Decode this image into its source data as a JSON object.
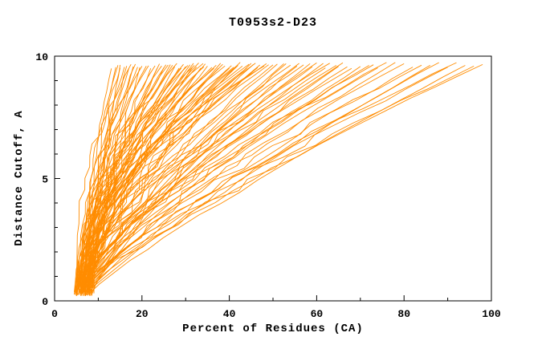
{
  "page": {
    "background": "#ffffff"
  },
  "chart_data": {
    "type": "line",
    "title": "T0953s2-D23",
    "xlabel": "Percent of Residues (CA)",
    "ylabel": "Distance Cutoff, A",
    "xlim": [
      0,
      100
    ],
    "ylim": [
      0,
      10
    ],
    "x_major_ticks": [
      0,
      20,
      40,
      60,
      80,
      100
    ],
    "x_minor_ticks": [
      10,
      30,
      50,
      70,
      90
    ],
    "y_major_ticks": [
      0,
      5,
      10
    ],
    "y_minor_ticks": [
      1,
      2,
      3,
      4,
      6,
      7,
      8,
      9
    ],
    "grid": false,
    "legend": "none",
    "line_color": "#ff8c00",
    "axis_color": "#000000",
    "curve_vertical_extent": [
      0.3,
      9.7
    ],
    "curve_format": [
      "percent_at_cutoff_bottom",
      "percent_at_cutoff_top",
      "shape_exponent"
    ],
    "curves": [
      [
        6,
        13,
        1.6
      ],
      [
        7,
        14,
        1.8
      ],
      [
        5.5,
        15,
        1.5
      ],
      [
        8,
        16,
        2.0
      ],
      [
        6.5,
        16.5,
        1.4
      ],
      [
        7.5,
        17,
        1.7
      ],
      [
        5,
        17.5,
        2.1
      ],
      [
        8.5,
        18,
        1.5
      ],
      [
        6,
        18.5,
        1.9
      ],
      [
        7,
        19,
        1.6
      ],
      [
        9,
        19.5,
        1.4
      ],
      [
        5.5,
        20,
        2.2
      ],
      [
        8,
        15,
        1.3
      ],
      [
        6.8,
        14.5,
        2.0
      ],
      [
        5,
        21,
        1.8
      ],
      [
        6,
        22,
        1.5
      ],
      [
        7,
        23,
        2.0
      ],
      [
        8,
        24,
        1.6
      ],
      [
        5.5,
        24.5,
        1.9
      ],
      [
        6.5,
        25,
        1.4
      ],
      [
        7.5,
        26,
        2.2
      ],
      [
        8.5,
        26.5,
        1.7
      ],
      [
        4.5,
        27,
        1.5
      ],
      [
        6,
        28,
        2.0
      ],
      [
        7,
        28.5,
        1.6
      ],
      [
        8,
        29,
        1.9
      ],
      [
        5,
        30,
        1.5
      ],
      [
        6.5,
        30.5,
        2.1
      ],
      [
        7.5,
        31,
        1.7
      ],
      [
        8.5,
        31.5,
        1.4
      ],
      [
        5.5,
        32,
        2.0
      ],
      [
        6,
        32.5,
        1.6
      ],
      [
        7,
        33,
        1.8
      ],
      [
        8,
        33.5,
        1.5
      ],
      [
        4.8,
        34,
        2.2
      ],
      [
        6.2,
        34.5,
        1.7
      ],
      [
        7.2,
        35,
        1.5
      ],
      [
        5.8,
        21.5,
        2.0
      ],
      [
        6.8,
        23.5,
        1.6
      ],
      [
        7.8,
        25.5,
        1.9
      ],
      [
        8.2,
        27.5,
        1.5
      ],
      [
        5.2,
        29.5,
        1.8
      ],
      [
        6.4,
        31.8,
        1.6
      ],
      [
        7.6,
        34.2,
        2.1
      ],
      [
        5,
        36,
        1.7
      ],
      [
        6,
        37,
        1.9
      ],
      [
        7,
        38,
        1.5
      ],
      [
        8,
        39,
        2.1
      ],
      [
        5.5,
        40,
        1.6
      ],
      [
        6.5,
        41,
        1.8
      ],
      [
        7.5,
        42,
        1.5
      ],
      [
        8.5,
        43,
        2.0
      ],
      [
        4.5,
        44,
        1.7
      ],
      [
        6,
        45,
        1.5
      ],
      [
        7,
        46,
        1.9
      ],
      [
        8,
        47,
        1.6
      ],
      [
        5,
        48,
        2.1
      ],
      [
        6.5,
        49,
        1.7
      ],
      [
        7.5,
        50,
        1.5
      ],
      [
        5.8,
        36.5,
        2.0
      ],
      [
        6.8,
        38.5,
        1.6
      ],
      [
        7.8,
        40.5,
        1.9
      ],
      [
        8.2,
        42.5,
        1.5
      ],
      [
        5.2,
        44.5,
        1.8
      ],
      [
        6.4,
        46.5,
        1.6
      ],
      [
        7.6,
        48.5,
        2.0
      ],
      [
        4.8,
        37.5,
        1.5
      ],
      [
        6.2,
        41.5,
        1.8
      ],
      [
        7.2,
        45.5,
        1.6
      ],
      [
        5,
        51,
        1.4
      ],
      [
        6,
        52.5,
        1.3
      ],
      [
        7,
        54,
        1.6
      ],
      [
        8,
        55.5,
        1.35
      ],
      [
        5.5,
        57,
        1.5
      ],
      [
        6.5,
        58.5,
        1.3
      ],
      [
        7.5,
        60,
        1.45
      ],
      [
        8.5,
        61.5,
        1.35
      ],
      [
        4.5,
        63,
        1.55
      ],
      [
        6,
        64.5,
        1.4
      ],
      [
        7,
        53,
        1.3
      ],
      [
        8,
        56,
        1.5
      ],
      [
        5,
        59,
        1.35
      ],
      [
        6.5,
        62,
        1.45
      ],
      [
        7.5,
        65,
        1.3
      ],
      [
        5,
        66,
        1.3
      ],
      [
        6,
        68,
        1.4
      ],
      [
        7,
        70,
        1.25
      ],
      [
        8,
        72,
        1.35
      ],
      [
        5.5,
        74,
        1.3
      ],
      [
        6.5,
        76,
        1.45
      ],
      [
        7.5,
        78,
        1.25
      ],
      [
        8.5,
        80,
        1.35
      ],
      [
        4.5,
        67,
        1.3
      ],
      [
        6,
        73,
        1.4
      ],
      [
        5,
        82,
        1.2
      ],
      [
        6,
        84,
        1.3
      ],
      [
        7,
        86,
        1.15
      ],
      [
        8,
        88,
        1.25
      ],
      [
        5.5,
        90,
        1.2
      ],
      [
        6.5,
        92,
        1.3
      ],
      [
        7.5,
        94,
        1.15
      ],
      [
        6,
        96,
        1.2
      ],
      [
        7,
        98,
        1.25
      ]
    ]
  }
}
